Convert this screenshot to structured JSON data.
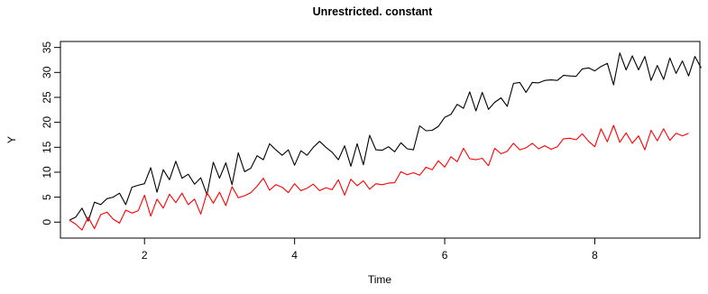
{
  "chart_data": {
    "type": "line",
    "title": "Unrestricted. constant",
    "xlabel": "Time",
    "ylabel": "Y",
    "xlim": [
      0.88,
      9.4
    ],
    "ylim": [
      -3.2,
      36.2
    ],
    "xticks": [
      2,
      4,
      6,
      8
    ],
    "yticks": [
      0,
      5,
      10,
      15,
      20,
      25,
      30,
      35
    ],
    "x_start": 1.0,
    "x_step": 0.0833333333,
    "grid": false,
    "legend": "none",
    "series": [
      {
        "color": "#000000",
        "values": [
          0.4,
          1.0,
          2.8,
          0.2,
          4.0,
          3.5,
          4.7,
          5.0,
          5.8,
          3.5,
          7.0,
          7.4,
          7.7,
          10.9,
          6.0,
          10.5,
          8.5,
          12.2,
          8.8,
          9.6,
          7.6,
          8.9,
          5.5,
          12.0,
          8.8,
          11.9,
          7.5,
          13.9,
          10.1,
          10.8,
          13.3,
          12.5,
          15.7,
          14.5,
          13.4,
          14.5,
          11.4,
          14.3,
          13.4,
          15.0,
          16.2,
          15.0,
          14.0,
          12.5,
          15.3,
          11.2,
          15.7,
          11.5,
          17.4,
          14.5,
          14.4,
          15.1,
          14.1,
          15.9,
          14.7,
          14.5,
          19.3,
          18.3,
          18.4,
          19.2,
          21.0,
          21.6,
          23.6,
          22.8,
          26.1,
          22.3,
          26.0,
          22.6,
          24.0,
          24.9,
          23.2,
          27.8,
          28.0,
          26.0,
          28.0,
          27.9,
          28.4,
          28.5,
          28.4,
          29.4,
          29.3,
          29.2,
          30.7,
          30.9,
          30.3,
          31.2,
          31.8,
          27.5,
          33.9,
          30.5,
          33.3,
          30.5,
          33.2,
          28.4,
          31.4,
          28.6,
          32.9,
          29.8,
          32.3,
          29.3,
          33.2,
          30.9
        ]
      },
      {
        "color": "#ff0000",
        "values": [
          0.4,
          -0.4,
          -1.6,
          1.0,
          -1.3,
          1.5,
          2.0,
          0.6,
          -0.2,
          2.4,
          1.8,
          2.3,
          5.4,
          1.2,
          4.6,
          2.8,
          5.6,
          3.9,
          5.8,
          3.5,
          4.6,
          1.6,
          5.9,
          3.8,
          6.0,
          3.3,
          7.1,
          4.9,
          5.3,
          5.9,
          7.2,
          8.8,
          6.4,
          7.5,
          7.0,
          5.9,
          7.7,
          6.3,
          6.8,
          7.6,
          6.3,
          6.9,
          6.5,
          8.5,
          5.4,
          8.6,
          7.3,
          8.3,
          6.6,
          7.7,
          7.5,
          7.8,
          7.9,
          10.1,
          9.5,
          9.9,
          9.4,
          11.0,
          10.5,
          12.3,
          11.0,
          13.1,
          12.1,
          14.8,
          12.7,
          12.5,
          12.8,
          11.3,
          14.8,
          13.7,
          14.2,
          15.8,
          14.5,
          14.9,
          15.8,
          14.7,
          15.3,
          14.6,
          15.1,
          16.7,
          16.8,
          16.5,
          17.7,
          16.2,
          15.1,
          18.7,
          16.1,
          19.4,
          16.0,
          17.9,
          15.8,
          17.3,
          14.5,
          18.4,
          16.3,
          18.7,
          16.4,
          17.8,
          17.3,
          17.8
        ]
      }
    ]
  }
}
